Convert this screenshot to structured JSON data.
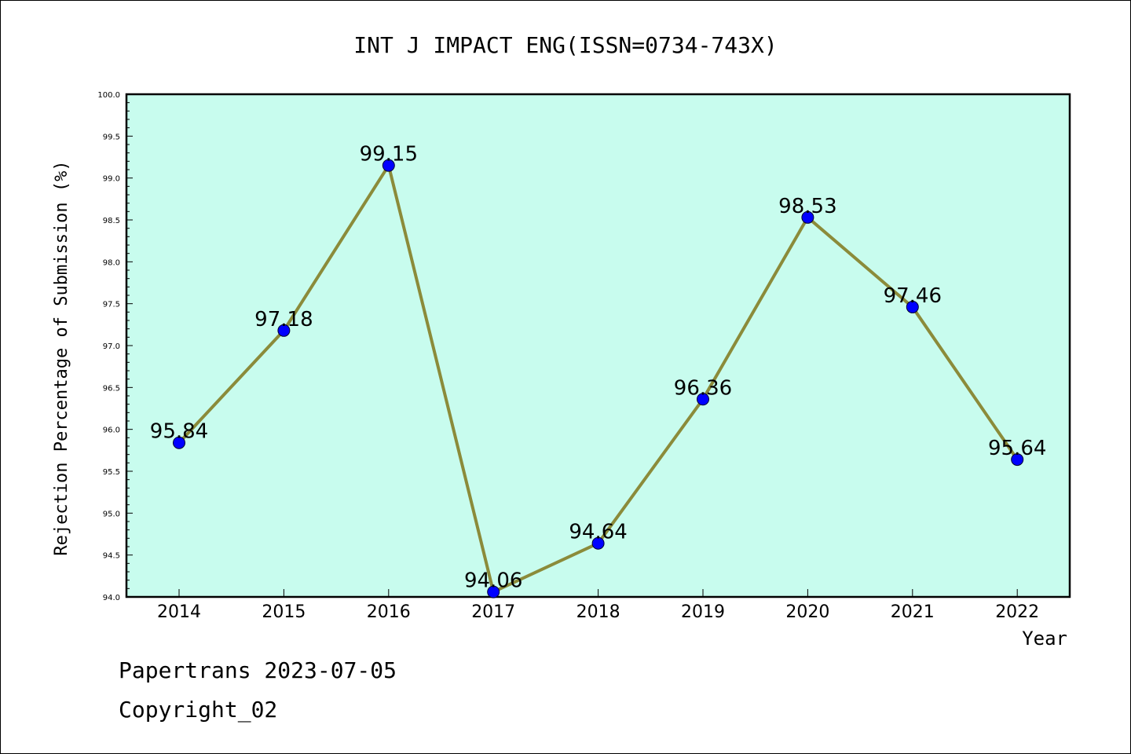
{
  "chart_data": {
    "type": "line",
    "title": "INT J IMPACT ENG(ISSN=0734-743X)",
    "xlabel": "Year",
    "ylabel": "Rejection Percentage of Submission (%)",
    "categories": [
      "2014",
      "2015",
      "2016",
      "2017",
      "2018",
      "2019",
      "2020",
      "2021",
      "2022"
    ],
    "values": [
      95.84,
      97.18,
      99.15,
      94.06,
      94.64,
      96.36,
      98.53,
      97.46,
      95.64
    ],
    "data_labels": [
      "95.84",
      "97.18",
      "99.15",
      "94.06",
      "94.64",
      "96.36",
      "98.53",
      "97.46",
      "95.64"
    ],
    "ylim": [
      94.0,
      100.0
    ],
    "yticks": [
      "94.0",
      "94.5",
      "95.0",
      "95.5",
      "96.0",
      "96.5",
      "97.0",
      "97.5",
      "98.0",
      "98.5",
      "99.0",
      "99.5",
      "100.0"
    ],
    "grid": false,
    "legend": "none",
    "colors": {
      "plot_background": "#c8fcee",
      "line": "#8b8b3a",
      "marker": "#0000ff"
    }
  },
  "footer": {
    "line1": "Papertrans 2023-07-05",
    "line2": "Copyright_02"
  }
}
